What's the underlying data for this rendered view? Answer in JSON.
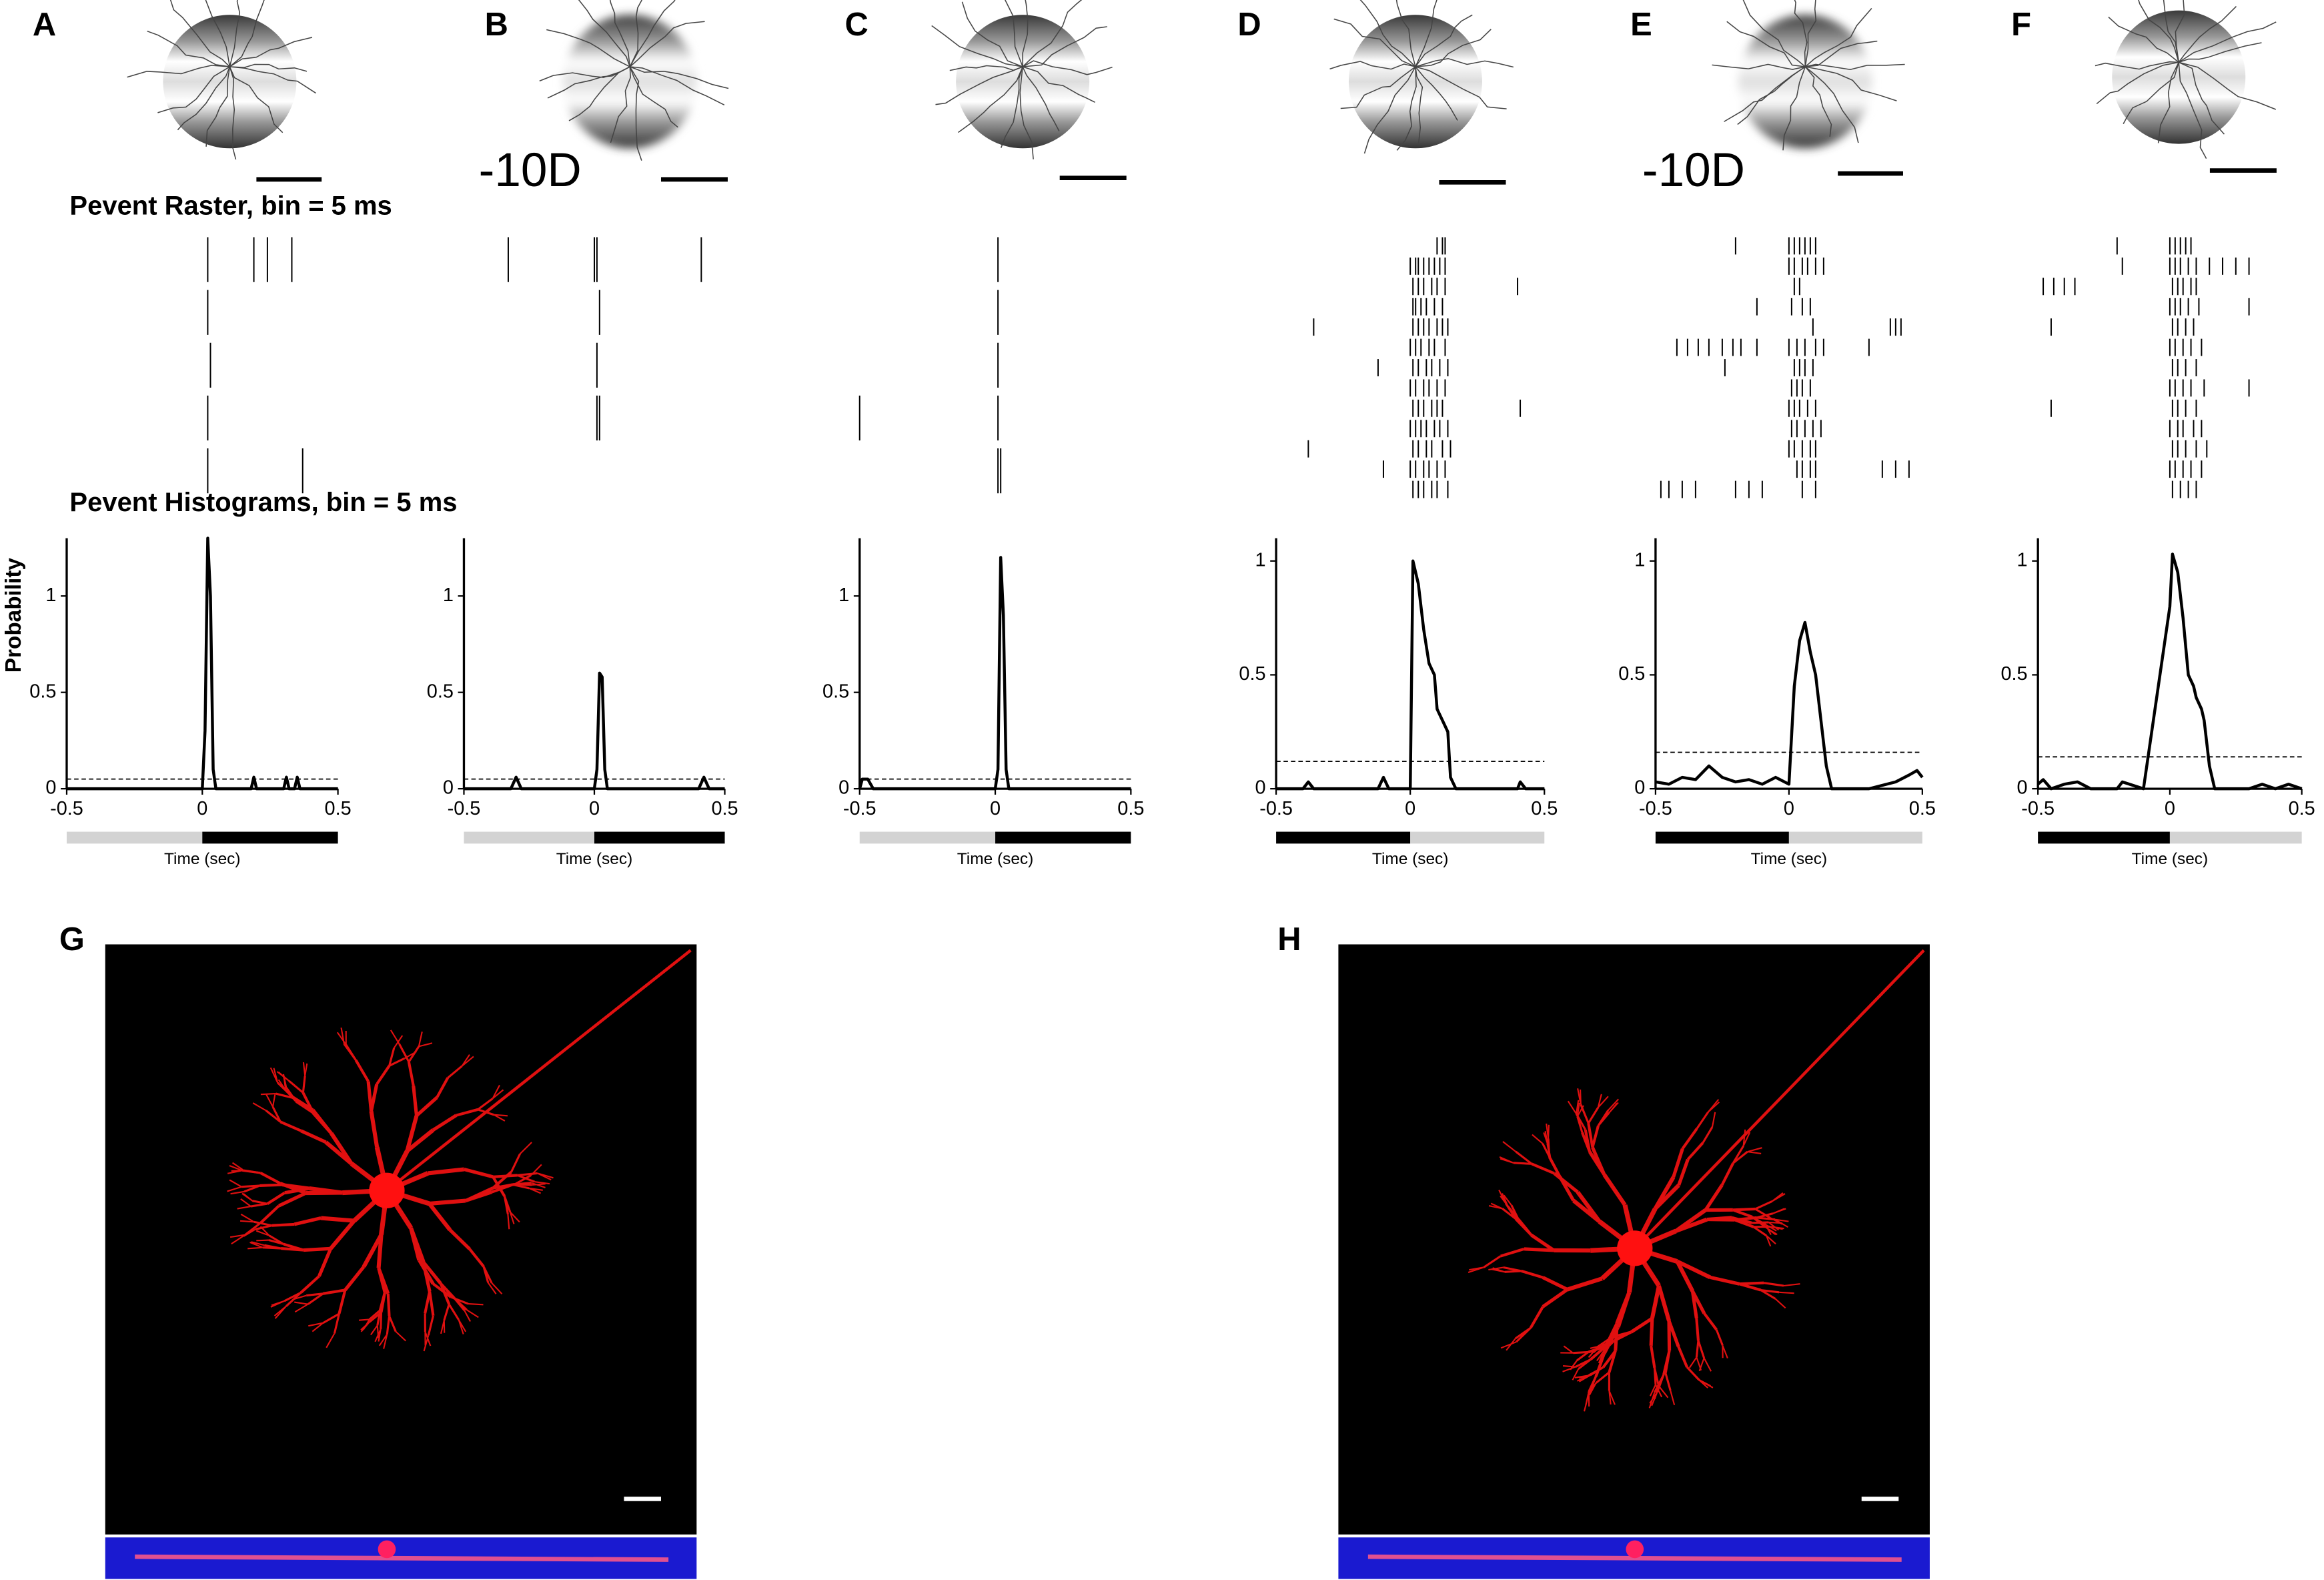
{
  "headings": {
    "raster": "Pevent Raster, bin = 5 ms",
    "histogram": "Pevent Histograms, bin = 5 ms"
  },
  "images": [
    {
      "panel": "G"
    },
    {
      "panel": "H"
    }
  ],
  "chart_data": [
    {
      "type": "line",
      "panel": "A",
      "ylabel": "Probability",
      "xlabel": "Time (sec)",
      "color": "#000000",
      "x": [
        -0.5,
        0,
        0.01,
        0.02,
        0.03,
        0.04,
        0.05,
        0.18,
        0.19,
        0.2,
        0.3,
        0.31,
        0.32,
        0.34,
        0.35,
        0.36,
        0.5
      ],
      "values": [
        0,
        0,
        0.3,
        1.3,
        1.0,
        0.1,
        0,
        0,
        0.06,
        0,
        0,
        0.06,
        0,
        0,
        0.06,
        0,
        0
      ],
      "threshold": 0.05,
      "stimulus_colors": [
        "#d3d3d3",
        "#000000"
      ],
      "raster": [
        [
          0.02,
          0.19,
          0.24,
          0.33
        ],
        [
          0.02
        ],
        [
          0.03
        ],
        [
          0.02
        ],
        [
          0.02,
          0.37
        ]
      ],
      "xlim": [
        -0.5,
        0.5
      ],
      "xticks": [
        -0.5,
        0,
        0.5
      ],
      "ylim": [
        0,
        1.3
      ],
      "yticks": [
        0,
        0.5,
        1
      ]
    },
    {
      "type": "line",
      "panel": "B",
      "annotation": "-10D",
      "xlabel": "Time (sec)",
      "color": "#000000",
      "x": [
        -0.5,
        -0.32,
        -0.3,
        -0.28,
        0,
        0.01,
        0.02,
        0.03,
        0.04,
        0.05,
        0.4,
        0.42,
        0.44,
        0.5
      ],
      "values": [
        0,
        0,
        0.06,
        0,
        0,
        0.1,
        0.6,
        0.58,
        0.1,
        0,
        0,
        0.06,
        0,
        0
      ],
      "threshold": 0.05,
      "stimulus_colors": [
        "#d3d3d3",
        "#000000"
      ],
      "raster": [
        [
          -0.33,
          0.0,
          0.01,
          0.41
        ],
        [
          0.02
        ],
        [
          0.01
        ],
        [
          0.01,
          0.02
        ]
      ],
      "xlim": [
        -0.5,
        0.5
      ],
      "xticks": [
        -0.5,
        0,
        0.5
      ],
      "ylim": [
        0,
        1.3
      ],
      "yticks": [
        0,
        0.5,
        1
      ]
    },
    {
      "type": "line",
      "panel": "C",
      "xlabel": "Time (sec)",
      "color": "#000000",
      "x": [
        -0.5,
        -0.49,
        -0.47,
        -0.45,
        0,
        0.01,
        0.02,
        0.03,
        0.04,
        0.05,
        0.5
      ],
      "values": [
        0,
        0.05,
        0.05,
        0,
        0,
        0.1,
        1.2,
        0.9,
        0.1,
        0,
        0
      ],
      "threshold": 0.05,
      "stimulus_colors": [
        "#d3d3d3",
        "#000000"
      ],
      "raster": [
        [
          0.01
        ],
        [
          0.01
        ],
        [
          0.01
        ],
        [
          -0.5,
          0.01
        ],
        [
          0.01,
          0.02
        ]
      ],
      "xlim": [
        -0.5,
        0.5
      ],
      "xticks": [
        -0.5,
        0,
        0.5
      ],
      "ylim": [
        0,
        1.3
      ],
      "yticks": [
        0,
        0.5,
        1
      ]
    },
    {
      "type": "line",
      "panel": "D",
      "xlabel": "Time (sec)",
      "color": "#000000",
      "x": [
        -0.5,
        -0.4,
        -0.38,
        -0.36,
        -0.12,
        -0.1,
        -0.08,
        0,
        0.01,
        0.03,
        0.05,
        0.07,
        0.09,
        0.1,
        0.12,
        0.14,
        0.15,
        0.17,
        0.4,
        0.41,
        0.43,
        0.5
      ],
      "values": [
        0,
        0,
        0.03,
        0,
        0,
        0.05,
        0,
        0,
        1.0,
        0.9,
        0.7,
        0.55,
        0.5,
        0.35,
        0.3,
        0.25,
        0.05,
        0,
        0,
        0.03,
        0,
        0
      ],
      "threshold": 0.12,
      "stimulus_colors": [
        "#000000",
        "#d3d3d3"
      ],
      "raster": [
        [
          0.1,
          0.12,
          0.13
        ],
        [
          0.0,
          0.02,
          0.03,
          0.05,
          0.07,
          0.09,
          0.11,
          0.13
        ],
        [
          0.01,
          0.03,
          0.05,
          0.08,
          0.1,
          0.13,
          0.4
        ],
        [
          0.01,
          0.02,
          0.04,
          0.06,
          0.09,
          0.12
        ],
        [
          -0.36,
          0.01,
          0.03,
          0.05,
          0.07,
          0.1,
          0.12,
          0.14
        ],
        [
          0.0,
          0.02,
          0.04,
          0.07,
          0.09,
          0.13
        ],
        [
          -0.12,
          0.01,
          0.03,
          0.06,
          0.08,
          0.11,
          0.14
        ],
        [
          0.0,
          0.02,
          0.05,
          0.07,
          0.1,
          0.13
        ],
        [
          0.01,
          0.03,
          0.05,
          0.08,
          0.1,
          0.12,
          0.41
        ],
        [
          0.0,
          0.02,
          0.04,
          0.06,
          0.09,
          0.11,
          0.14
        ],
        [
          -0.38,
          0.01,
          0.03,
          0.06,
          0.08,
          0.12,
          0.15
        ],
        [
          -0.1,
          0.0,
          0.02,
          0.05,
          0.07,
          0.1,
          0.13
        ],
        [
          0.01,
          0.03,
          0.05,
          0.08,
          0.1,
          0.14
        ]
      ],
      "xlim": [
        -0.5,
        0.5
      ],
      "xticks": [
        -0.5,
        0,
        0.5
      ],
      "ylim": [
        0,
        1.1
      ],
      "yticks": [
        0,
        0.5,
        1
      ]
    },
    {
      "type": "line",
      "panel": "E",
      "annotation": "-10D",
      "xlabel": "Time (sec)",
      "color": "#000000",
      "x": [
        -0.5,
        -0.45,
        -0.4,
        -0.35,
        -0.3,
        -0.25,
        -0.2,
        -0.15,
        -0.1,
        -0.05,
        0,
        0.02,
        0.04,
        0.06,
        0.08,
        0.1,
        0.12,
        0.14,
        0.16,
        0.2,
        0.3,
        0.4,
        0.45,
        0.48,
        0.5
      ],
      "values": [
        0.03,
        0.02,
        0.05,
        0.04,
        0.1,
        0.05,
        0.03,
        0.04,
        0.02,
        0.05,
        0.02,
        0.45,
        0.65,
        0.73,
        0.6,
        0.5,
        0.3,
        0.1,
        0,
        0,
        0,
        0.03,
        0.06,
        0.08,
        0.05
      ],
      "threshold": 0.16,
      "stimulus_colors": [
        "#000000",
        "#d3d3d3"
      ],
      "raster": [
        [
          -0.2,
          0.0,
          0.02,
          0.04,
          0.06,
          0.08,
          0.1
        ],
        [
          0.0,
          0.02,
          0.05,
          0.07,
          0.1,
          0.13
        ],
        [
          0.02,
          0.04
        ],
        [
          -0.12,
          0.01,
          0.05,
          0.08
        ],
        [
          0.09,
          0.38,
          0.4,
          0.42
        ],
        [
          -0.42,
          -0.38,
          -0.34,
          -0.3,
          -0.25,
          -0.21,
          -0.18,
          -0.12,
          0.0,
          0.03,
          0.06,
          0.1,
          0.13,
          0.3
        ],
        [
          -0.24,
          0.02,
          0.04,
          0.06,
          0.09
        ],
        [
          0.01,
          0.03,
          0.05,
          0.08
        ],
        [
          0.0,
          0.02,
          0.04,
          0.07,
          0.1
        ],
        [
          0.01,
          0.03,
          0.06,
          0.09,
          0.12
        ],
        [
          0.0,
          0.02,
          0.05,
          0.08,
          0.1
        ],
        [
          0.03,
          0.05,
          0.08,
          0.1,
          0.35,
          0.4,
          0.45
        ],
        [
          -0.48,
          -0.45,
          -0.4,
          -0.35,
          -0.2,
          -0.15,
          -0.1,
          0.05,
          0.1
        ]
      ],
      "xlim": [
        -0.5,
        0.5
      ],
      "xticks": [
        -0.5,
        0,
        0.5
      ],
      "ylim": [
        0,
        1.1
      ],
      "yticks": [
        0,
        0.5,
        1
      ]
    },
    {
      "type": "line",
      "panel": "F",
      "xlabel": "Time (sec)",
      "color": "#000000",
      "x": [
        -0.5,
        -0.48,
        -0.45,
        -0.4,
        -0.35,
        -0.3,
        -0.2,
        -0.18,
        -0.1,
        0,
        0.01,
        0.03,
        0.05,
        0.07,
        0.09,
        0.1,
        0.12,
        0.13,
        0.15,
        0.17,
        0.3,
        0.35,
        0.4,
        0.45,
        0.5
      ],
      "values": [
        0.02,
        0.04,
        0,
        0.02,
        0.03,
        0,
        0,
        0.03,
        0,
        0.8,
        1.03,
        0.95,
        0.75,
        0.5,
        0.45,
        0.4,
        0.35,
        0.3,
        0.1,
        0,
        0,
        0.02,
        0,
        0.02,
        0
      ],
      "threshold": 0.14,
      "stimulus_colors": [
        "#000000",
        "#d3d3d3"
      ],
      "raster": [
        [
          -0.2,
          0.0,
          0.02,
          0.04,
          0.06,
          0.08
        ],
        [
          -0.18,
          0.0,
          0.02,
          0.04,
          0.07,
          0.1,
          0.15,
          0.2,
          0.25,
          0.3
        ],
        [
          -0.48,
          -0.44,
          -0.4,
          -0.36,
          0.01,
          0.03,
          0.05,
          0.08,
          0.1
        ],
        [
          0.0,
          0.02,
          0.04,
          0.07,
          0.11,
          0.3
        ],
        [
          -0.45,
          0.01,
          0.03,
          0.06,
          0.09
        ],
        [
          0.0,
          0.02,
          0.05,
          0.08,
          0.12
        ],
        [
          0.01,
          0.03,
          0.06,
          0.1
        ],
        [
          0.0,
          0.02,
          0.05,
          0.08,
          0.13,
          0.3
        ],
        [
          -0.45,
          0.01,
          0.03,
          0.06,
          0.1
        ],
        [
          0.0,
          0.03,
          0.05,
          0.09,
          0.12
        ],
        [
          0.01,
          0.03,
          0.06,
          0.1,
          0.14
        ],
        [
          0.0,
          0.02,
          0.05,
          0.08,
          0.12
        ],
        [
          0.01,
          0.04,
          0.07,
          0.1
        ]
      ],
      "xlim": [
        -0.5,
        0.5
      ],
      "xticks": [
        -0.5,
        0,
        0.5
      ],
      "ylim": [
        0,
        1.1
      ],
      "yticks": [
        0,
        0.5,
        1
      ]
    }
  ]
}
